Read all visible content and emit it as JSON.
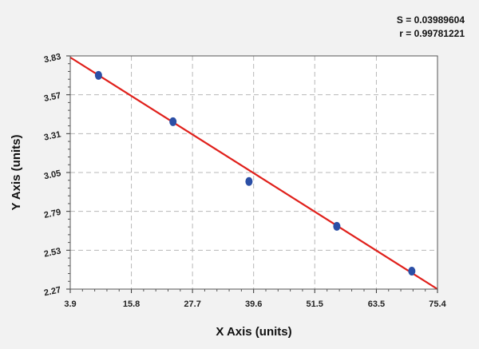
{
  "chart_data": {
    "type": "scatter",
    "title": "",
    "xlabel": "X Axis (units)",
    "ylabel": "Y Axis (units)",
    "xlim": [
      3.9,
      75.4
    ],
    "ylim": [
      2.27,
      3.83
    ],
    "x_ticks": [
      3.9,
      15.8,
      27.7,
      39.6,
      51.5,
      63.5,
      75.4
    ],
    "y_ticks": [
      2.27,
      2.53,
      2.79,
      3.05,
      3.31,
      3.57,
      3.83
    ],
    "x_tick_labels": [
      "3.9",
      "15.8",
      "27.7",
      "39.6",
      "51.5",
      "63.5",
      "75.4"
    ],
    "y_tick_labels": [
      "2.27",
      "2.53",
      "2.79",
      "3.05",
      "3.31",
      "3.57",
      "3.83"
    ],
    "grid": true,
    "series": [
      {
        "type": "scatter",
        "color": "#2b4fa6",
        "x": [
          9.4,
          23.9,
          38.7,
          55.8,
          70.4
        ],
        "y": [
          3.7,
          3.39,
          2.99,
          2.69,
          2.39
        ]
      },
      {
        "type": "line",
        "color": "#e0201b",
        "x": [
          3.9,
          75.4
        ],
        "y": [
          3.82,
          2.27
        ]
      }
    ],
    "annotations": {
      "s_label": "S = 0.03989604",
      "r_label": "r = 0.99781221"
    },
    "colors": {
      "outer_background": "#f2f2f2",
      "plot_background": "#ffffff",
      "grid": "#b8b8b8",
      "border": "#555555"
    }
  }
}
